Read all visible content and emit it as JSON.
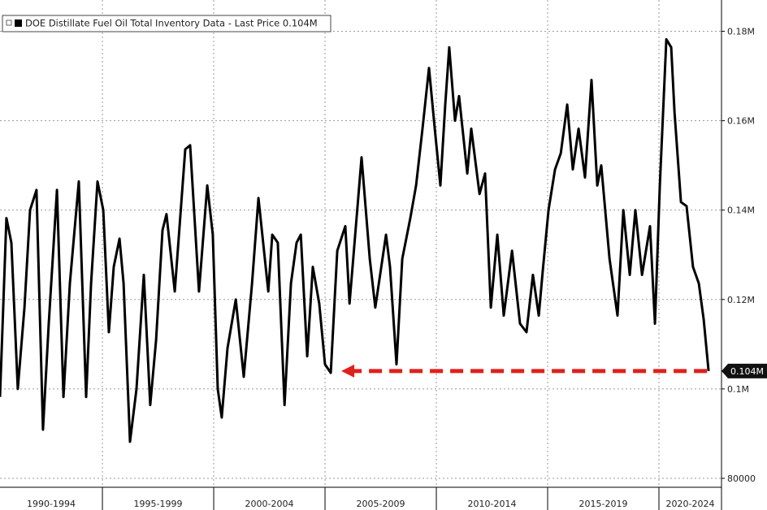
{
  "chart_data": {
    "type": "line",
    "title": "DOE Distillate Fuel Oil Total Inventory Data - Last Price 0.104M",
    "x": [
      1990.4,
      1990.69,
      1990.91,
      1991.2,
      1991.5,
      1991.75,
      1992.04,
      1992.33,
      1992.59,
      1992.96,
      1993.25,
      1993.54,
      1993.94,
      1994.27,
      1994.49,
      1994.78,
      1995.04,
      1995.29,
      1995.51,
      1995.77,
      1995.95,
      1996.24,
      1996.53,
      1996.86,
      1997.15,
      1997.41,
      1997.7,
      1997.88,
      1998.25,
      1998.72,
      1998.94,
      1999.05,
      1999.34,
      1999.71,
      1999.96,
      2000.18,
      2000.36,
      2000.62,
      2000.99,
      2001.35,
      2001.72,
      2002.01,
      2002.45,
      2002.63,
      2002.88,
      2003.18,
      2003.47,
      2003.72,
      2003.91,
      2004.2,
      2004.45,
      2004.74,
      2005.0,
      2005.26,
      2005.55,
      2005.91,
      2006.1,
      2006.64,
      2007.01,
      2007.26,
      2007.74,
      2007.92,
      2008.21,
      2008.47,
      2008.83,
      2009.09,
      2009.38,
      2009.67,
      2009.93,
      2010.18,
      2010.4,
      2010.58,
      2010.84,
      2011.02,
      2011.39,
      2011.57,
      2011.94,
      2012.19,
      2012.45,
      2012.74,
      2013.03,
      2013.4,
      2013.76,
      2014.05,
      2014.34,
      2014.6,
      2014.78,
      2015.04,
      2015.33,
      2015.59,
      2015.88,
      2016.13,
      2016.39,
      2016.68,
      2016.97,
      2017.23,
      2017.41,
      2017.78,
      2018.14,
      2018.4,
      2018.69,
      2018.94,
      2019.24,
      2019.6,
      2019.82,
      2020.04,
      2020.33,
      2020.55,
      2020.7,
      2020.99,
      2021.24,
      2021.53,
      2021.79,
      2022.01,
      2022.23
    ],
    "series": [
      {
        "name": "DOE Distillate Fuel Oil Total Inventory Data",
        "color": "#000000",
        "values": [
          98200,
          138200,
          132700,
          100000,
          118200,
          140000,
          144500,
          90900,
          114600,
          144500,
          98200,
          123600,
          146400,
          98200,
          123600,
          146400,
          140000,
          112700,
          127300,
          133600,
          123600,
          88200,
          100000,
          125500,
          96400,
          110900,
          135500,
          139100,
          121800,
          153600,
          154500,
          145500,
          121800,
          145500,
          134500,
          100000,
          93600,
          109100,
          120000,
          102700,
          123600,
          142700,
          121800,
          134500,
          132700,
          96400,
          123600,
          132700,
          134500,
          107300,
          127300,
          119100,
          105500,
          103600,
          130900,
          136400,
          119100,
          151800,
          129100,
          118200,
          134500,
          127300,
          105500,
          129100,
          138200,
          145500,
          158200,
          171800,
          158200,
          145500,
          163600,
          176400,
          160000,
          165500,
          148200,
          158200,
          143600,
          148200,
          118200,
          134500,
          116400,
          130900,
          114600,
          112700,
          125500,
          116400,
          126400,
          140000,
          149100,
          152700,
          163600,
          149100,
          158200,
          147300,
          169100,
          145500,
          150000,
          129100,
          116400,
          140000,
          125500,
          140000,
          125500,
          136400,
          114600,
          145500,
          178200,
          176400,
          161800,
          141800,
          140900,
          127300,
          123600,
          115500,
          104000
        ]
      }
    ],
    "periods": [
      {
        "label": "1990-1994",
        "start": 1990,
        "end": 1995
      },
      {
        "label": "1995-1999",
        "start": 1995,
        "end": 2000
      },
      {
        "label": "2000-2004",
        "start": 2000,
        "end": 2005
      },
      {
        "label": "2005-2009",
        "start": 2005,
        "end": 2010
      },
      {
        "label": "2010-2014",
        "start": 2010,
        "end": 2015
      },
      {
        "label": "2015-2019",
        "start": 2015,
        "end": 2020
      },
      {
        "label": "2020-2024",
        "start": 2020,
        "end": 2025
      }
    ],
    "xlim": [
      1990.4,
      2022.81
    ],
    "ylim": [
      78000,
      187000
    ],
    "yticks": [
      80000,
      {
        "value": 100000,
        "label": "0.1M"
      },
      {
        "value": 120000,
        "label": "0.12M"
      },
      {
        "value": 140000,
        "label": "0.14M"
      },
      {
        "value": 160000,
        "label": "0.16M"
      },
      {
        "value": 180000,
        "label": "0.18M"
      }
    ],
    "last_price": {
      "value": 104000,
      "label": "0.104M"
    },
    "annotation_arrow": {
      "x_from": 2022.23,
      "x_to": 2005.73,
      "y": 104000,
      "color": "#e0201b"
    },
    "grid": true
  }
}
